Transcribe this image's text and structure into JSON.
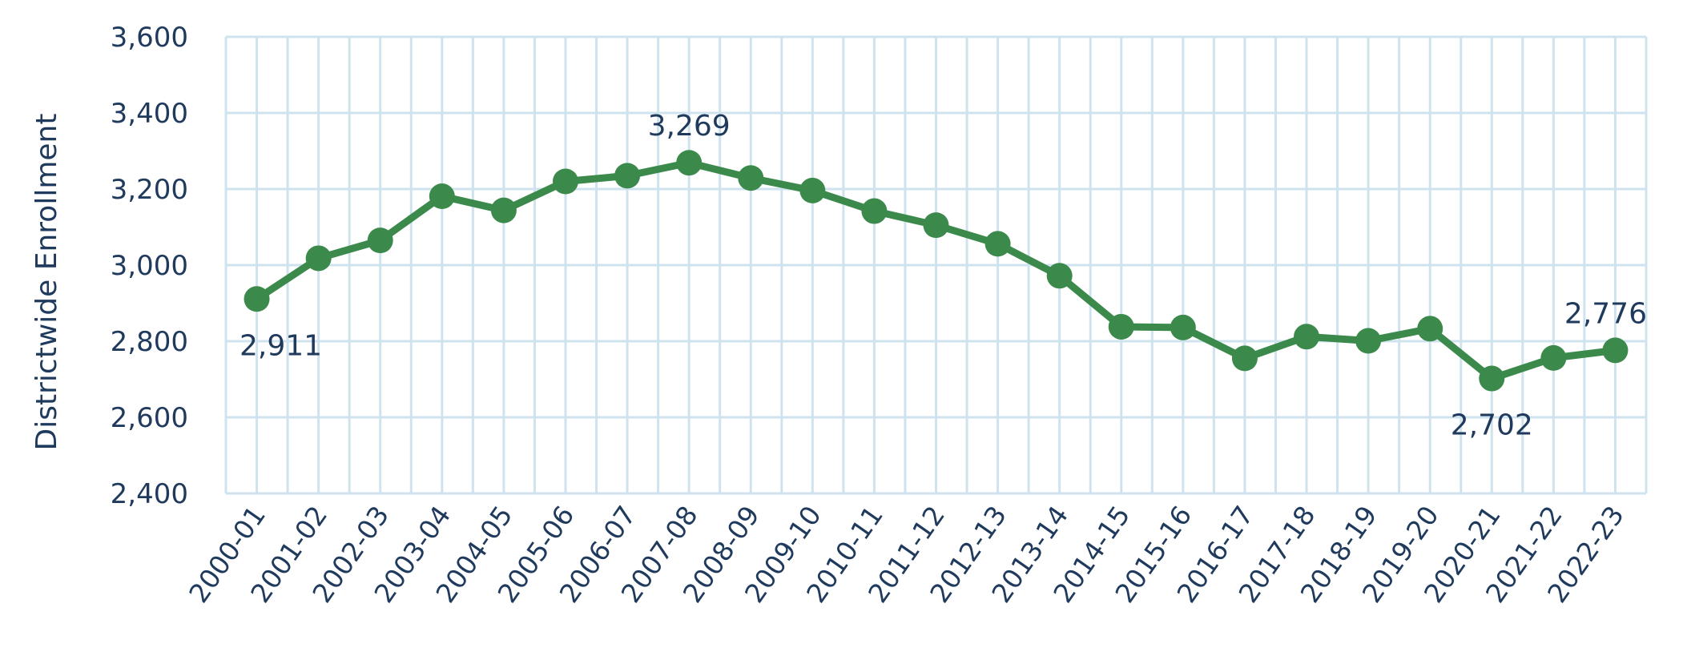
{
  "chart_data": {
    "type": "line",
    "title": "",
    "xlabel": "",
    "ylabel": "Districtwide Enrollment",
    "ylim": [
      2400,
      3600
    ],
    "yticks": [
      "2,400",
      "2,600",
      "2,800",
      "3,000",
      "3,200",
      "3,400",
      "3,600"
    ],
    "grid": true,
    "categories": [
      "2000-01",
      "2001-02",
      "2002-03",
      "2003-04",
      "2004-05",
      "2005-06",
      "2006-07",
      "2007-08",
      "2008-09",
      "2009-10",
      "2010-11",
      "2011-12",
      "2012-13",
      "2013-14",
      "2014-15",
      "2015-16",
      "2016-17",
      "2017-18",
      "2018-19",
      "2019-20",
      "2020-21",
      "2021-22",
      "2022-23"
    ],
    "series": [
      {
        "values": [
          2911,
          3018,
          3065,
          3181,
          3144,
          3220,
          3235,
          3269,
          3229,
          3196,
          3142,
          3105,
          3056,
          2972,
          2838,
          2836,
          2755,
          2812,
          2801,
          2833,
          2702,
          2756,
          2776
        ],
        "color": "#3b8a4b"
      }
    ],
    "annotations": [
      {
        "index": 0,
        "text": "2,911",
        "position": "below"
      },
      {
        "index": 7,
        "text": "3,269",
        "position": "above"
      },
      {
        "index": 20,
        "text": "2,702",
        "position": "below"
      },
      {
        "index": 22,
        "text": "2,776",
        "position": "above"
      }
    ]
  }
}
